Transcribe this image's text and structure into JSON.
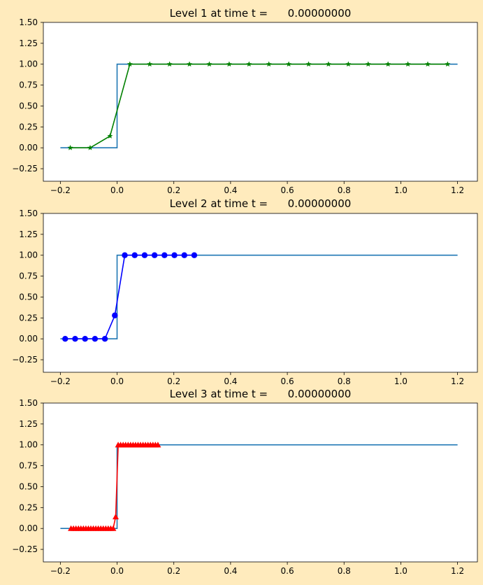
{
  "figure": {
    "background": "#ffebbd"
  },
  "chart_data": [
    {
      "type": "line",
      "title": "Level 1 at time t =      0.00000000",
      "xlim": [
        -0.26,
        1.27
      ],
      "ylim": [
        -0.4,
        1.5
      ],
      "xticks": [
        -0.2,
        0.0,
        0.2,
        0.4,
        0.6,
        0.8,
        1.0,
        1.2
      ],
      "xtick_labels": [
        "−0.2",
        "0.0",
        "0.2",
        "0.4",
        "0.6",
        "0.8",
        "1.0",
        "1.2"
      ],
      "yticks": [
        -0.25,
        0.0,
        0.25,
        0.5,
        0.75,
        1.0,
        1.25,
        1.5
      ],
      "ytick_labels": [
        "−0.25",
        "0.00",
        "0.25",
        "0.50",
        "0.75",
        "1.00",
        "1.25",
        "1.50"
      ],
      "series": [
        {
          "style": "step",
          "color": "#1f77b4",
          "x": [
            -0.2,
            0.0,
            0.0,
            1.2
          ],
          "y": [
            0.0,
            0.0,
            1.0,
            1.0
          ]
        },
        {
          "style": "line-marker",
          "marker": "star",
          "color": "#008000",
          "x": [
            -0.165,
            -0.095,
            -0.025,
            0.045,
            0.115,
            0.185,
            0.255,
            0.325,
            0.395,
            0.465,
            0.535,
            0.605,
            0.675,
            0.745,
            0.815,
            0.885,
            0.955,
            1.025,
            1.095,
            1.165
          ],
          "y": [
            0.0,
            0.0,
            0.14,
            1.0,
            1.0,
            1.0,
            1.0,
            1.0,
            1.0,
            1.0,
            1.0,
            1.0,
            1.0,
            1.0,
            1.0,
            1.0,
            1.0,
            1.0,
            1.0,
            1.0
          ]
        }
      ]
    },
    {
      "type": "line",
      "title": "Level 2 at time t =      0.00000000",
      "xlim": [
        -0.26,
        1.27
      ],
      "ylim": [
        -0.4,
        1.5
      ],
      "xticks": [
        -0.2,
        0.0,
        0.2,
        0.4,
        0.6,
        0.8,
        1.0,
        1.2
      ],
      "xtick_labels": [
        "−0.2",
        "0.0",
        "0.2",
        "0.4",
        "0.6",
        "0.8",
        "1.0",
        "1.2"
      ],
      "yticks": [
        -0.25,
        0.0,
        0.25,
        0.5,
        0.75,
        1.0,
        1.25,
        1.5
      ],
      "ytick_labels": [
        "−0.25",
        "0.00",
        "0.25",
        "0.50",
        "0.75",
        "1.00",
        "1.25",
        "1.50"
      ],
      "series": [
        {
          "style": "step",
          "color": "#1f77b4",
          "x": [
            -0.2,
            0.0,
            0.0,
            1.2
          ],
          "y": [
            0.0,
            0.0,
            1.0,
            1.0
          ]
        },
        {
          "style": "line-marker",
          "marker": "circle",
          "color": "#0000ff",
          "x": [
            -0.183,
            -0.148,
            -0.113,
            -0.078,
            -0.043,
            -0.008,
            0.027,
            0.062,
            0.097,
            0.132,
            0.167,
            0.202,
            0.237,
            0.272
          ],
          "y": [
            0.0,
            0.0,
            0.0,
            0.0,
            0.0,
            0.28,
            1.0,
            1.0,
            1.0,
            1.0,
            1.0,
            1.0,
            1.0,
            1.0
          ]
        }
      ]
    },
    {
      "type": "line",
      "title": "Level 3 at time t =      0.00000000",
      "xlim": [
        -0.26,
        1.27
      ],
      "ylim": [
        -0.4,
        1.5
      ],
      "xticks": [
        -0.2,
        0.0,
        0.2,
        0.4,
        0.6,
        0.8,
        1.0,
        1.2
      ],
      "xtick_labels": [
        "−0.2",
        "0.0",
        "0.2",
        "0.4",
        "0.6",
        "0.8",
        "1.0",
        "1.2"
      ],
      "yticks": [
        -0.25,
        0.0,
        0.25,
        0.5,
        0.75,
        1.0,
        1.25,
        1.5
      ],
      "ytick_labels": [
        "−0.25",
        "0.00",
        "0.25",
        "0.50",
        "0.75",
        "1.00",
        "1.25",
        "1.50"
      ],
      "series": [
        {
          "style": "step",
          "color": "#1f77b4",
          "x": [
            -0.2,
            0.0,
            0.0,
            1.2
          ],
          "y": [
            0.0,
            0.0,
            1.0,
            1.0
          ]
        },
        {
          "style": "line-marker",
          "marker": "triangle",
          "color": "#ff0000",
          "x": [
            -0.1625,
            -0.1538,
            -0.145,
            -0.1363,
            -0.1275,
            -0.1188,
            -0.11,
            -0.1013,
            -0.0925,
            -0.0838,
            -0.075,
            -0.0663,
            -0.0575,
            -0.0488,
            -0.04,
            -0.0313,
            -0.0225,
            -0.0138,
            -0.005,
            0.0038,
            0.0125,
            0.0213,
            0.03,
            0.0388,
            0.0475,
            0.0563,
            0.065,
            0.0738,
            0.0825,
            0.0913,
            0.1,
            0.1088,
            0.1175,
            0.1263,
            0.135,
            0.1438
          ],
          "y": [
            0.0,
            0.0,
            0.0,
            0.0,
            0.0,
            0.0,
            0.0,
            0.0,
            0.0,
            0.0,
            0.0,
            0.0,
            0.0,
            0.0,
            0.0,
            0.0,
            0.0,
            0.0,
            0.14,
            1.0,
            1.0,
            1.0,
            1.0,
            1.0,
            1.0,
            1.0,
            1.0,
            1.0,
            1.0,
            1.0,
            1.0,
            1.0,
            1.0,
            1.0,
            1.0,
            1.0
          ]
        }
      ]
    }
  ]
}
